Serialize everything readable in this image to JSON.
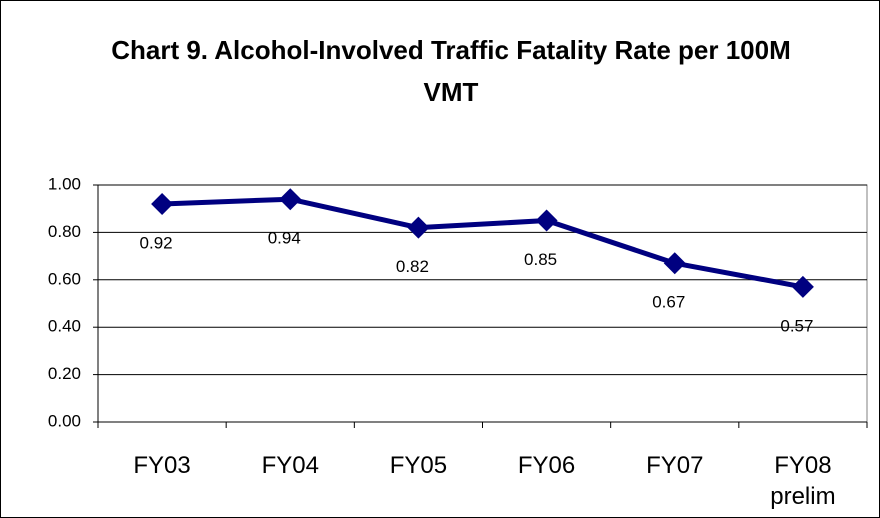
{
  "chart_data": {
    "type": "line",
    "title": "Chart 9. Alcohol-Involved Traffic Fatality Rate per 100M VMT",
    "categories": [
      "FY03",
      "FY04",
      "FY05",
      "FY06",
      "FY07",
      "FY08 prelim"
    ],
    "values": [
      0.92,
      0.94,
      0.82,
      0.85,
      0.67,
      0.57
    ],
    "color": "#000080",
    "ylim": [
      0,
      1
    ],
    "yticks": [
      {
        "value": 0,
        "label": "0.00"
      },
      {
        "value": 0.2,
        "label": "0.20"
      },
      {
        "value": 0.4,
        "label": "0.40"
      },
      {
        "value": 0.6,
        "label": "0.60"
      },
      {
        "value": 0.8,
        "label": "0.80"
      },
      {
        "value": 1,
        "label": "1.00"
      }
    ],
    "grid": true
  }
}
